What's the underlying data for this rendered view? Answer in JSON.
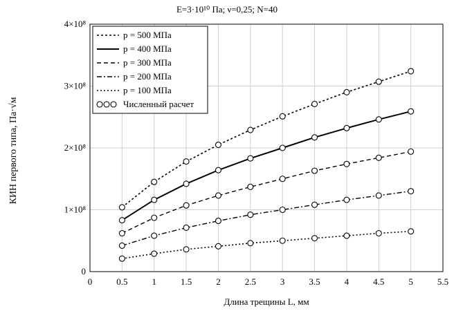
{
  "chart_data": {
    "type": "line",
    "title": "E=3·10¹⁰ Па; ν=0,25; N=40",
    "xlabel": "Длина трещины L, мм",
    "ylabel": "КИН первого типа, Па·√м",
    "xlim": [
      0,
      5.5
    ],
    "ylim": [
      0,
      400000000
    ],
    "xticks": [
      "0",
      "0.5",
      "1",
      "1.5",
      "2",
      "2.5",
      "3",
      "3.5",
      "4",
      "4.5",
      "5",
      "5.5"
    ],
    "yticks": [
      "0",
      "1×10⁸",
      "2×10⁸",
      "3×10⁸",
      "4×10⁸"
    ],
    "grid": true,
    "legend_position": "top-left",
    "x": [
      0.5,
      1,
      1.5,
      2,
      2.5,
      3,
      3.5,
      4,
      4.5,
      5
    ],
    "series": [
      {
        "name": "p = 500 МПа",
        "style": "dotted",
        "values": [
          104000000,
          145000000,
          178000000,
          205000000,
          229000000,
          251000000,
          271000000,
          290000000,
          307000000,
          324000000
        ]
      },
      {
        "name": "p = 400 МПа",
        "style": "solid",
        "values": [
          83000000,
          116000000,
          142000000,
          164000000,
          183000000,
          200000000,
          217000000,
          232000000,
          246000000,
          259000000
        ]
      },
      {
        "name": "p = 300 МПа",
        "style": "dashed",
        "values": [
          62000000,
          87000000,
          107000000,
          123000000,
          137000000,
          150000000,
          163000000,
          174000000,
          184000000,
          194000000
        ]
      },
      {
        "name": "p = 200 МПа",
        "style": "dashdot",
        "values": [
          42000000,
          58000000,
          71000000,
          82000000,
          92000000,
          100000000,
          108000000,
          116000000,
          123000000,
          130000000
        ]
      },
      {
        "name": "p = 100 МПа",
        "style": "dotted-fine",
        "values": [
          21000000,
          29000000,
          36000000,
          41000000,
          46000000,
          50000000,
          54000000,
          58000000,
          62000000,
          65000000
        ]
      }
    ],
    "markers_legend": "Численный расчет"
  }
}
